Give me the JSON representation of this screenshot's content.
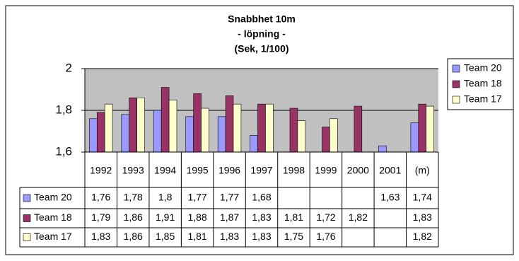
{
  "chart_data": {
    "type": "bar",
    "title_lines": [
      "Snabbhet 10m",
      "- löpning -",
      "(Sek, 1/100)"
    ],
    "categories": [
      "1992",
      "1993",
      "1994",
      "1995",
      "1996",
      "1997",
      "1998",
      "1999",
      "2000",
      "2001",
      "(m)"
    ],
    "series": [
      {
        "name": "Team 20",
        "color": "#9999ff",
        "values": [
          1.76,
          1.78,
          1.8,
          1.77,
          1.77,
          1.68,
          null,
          null,
          null,
          1.63,
          1.74
        ],
        "value_labels": [
          "1,76",
          "1,78",
          "1,8",
          "1,77",
          "1,77",
          "1,68",
          null,
          null,
          null,
          "1,63",
          "1,74"
        ]
      },
      {
        "name": "Team 18",
        "color": "#993366",
        "values": [
          1.79,
          1.86,
          1.91,
          1.88,
          1.87,
          1.83,
          1.81,
          1.72,
          1.82,
          null,
          1.83
        ],
        "value_labels": [
          "1,79",
          "1,86",
          "1,91",
          "1,88",
          "1,87",
          "1,83",
          "1,81",
          "1,72",
          "1,82",
          null,
          "1,83"
        ]
      },
      {
        "name": "Team 17",
        "color": "#ffffcc",
        "values": [
          1.83,
          1.86,
          1.85,
          1.81,
          1.83,
          1.83,
          1.75,
          1.76,
          null,
          null,
          1.82
        ],
        "value_labels": [
          "1,83",
          "1,86",
          "1,85",
          "1,81",
          "1,83",
          "1,83",
          "1,75",
          "1,76",
          null,
          null,
          "1,82"
        ]
      }
    ],
    "ylim": [
      1.6,
      2
    ],
    "yticks": [
      {
        "value": 1.6,
        "label": "1,6"
      },
      {
        "value": 1.8,
        "label": "1,8"
      },
      2
    ],
    "grid": true,
    "plot_background": "#c0c0c0",
    "legend": "right"
  }
}
